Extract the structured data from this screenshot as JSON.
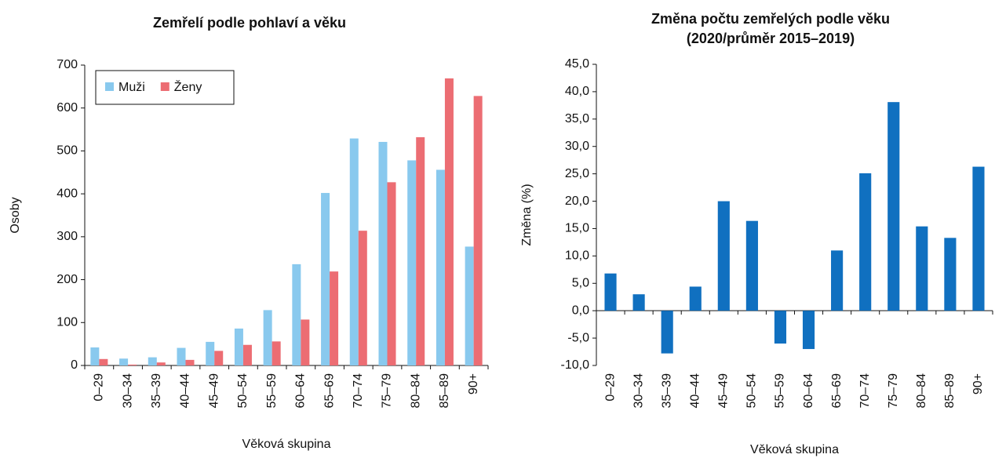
{
  "chart_data": [
    {
      "type": "bar",
      "title": "Zemřelí podle pohlaví a věku",
      "ylabel": "Osoby",
      "xlabel": "Věková skupina",
      "categories": [
        "0–29",
        "30–34",
        "35–39",
        "40–44",
        "45–49",
        "50–54",
        "55–59",
        "60–64",
        "65–69",
        "70–74",
        "75–79",
        "80–84",
        "85–89",
        "90+"
      ],
      "series": [
        {
          "name": "Muži",
          "color": "#89c9ee",
          "values": [
            42,
            16,
            19,
            41,
            55,
            86,
            129,
            236,
            402,
            529,
            521,
            478,
            456,
            277
          ]
        },
        {
          "name": "Ženy",
          "color": "#ec6d73",
          "values": [
            15,
            2,
            7,
            13,
            34,
            48,
            56,
            107,
            219,
            314,
            427,
            532,
            669,
            628
          ]
        }
      ],
      "ylim": [
        0,
        700
      ],
      "yticks": [
        0,
        100,
        200,
        300,
        400,
        500,
        600,
        700
      ],
      "legend": "upper-left"
    },
    {
      "type": "bar",
      "title": "Změna počtu zemřelých podle věku",
      "subtitle": "(2020/průměr 2015–2019)",
      "ylabel": "Změna (%)",
      "xlabel": "Věková skupina",
      "categories": [
        "0–29",
        "30–34",
        "35–39",
        "40–44",
        "45–49",
        "50–54",
        "55–59",
        "60–64",
        "65–69",
        "70–74",
        "75–79",
        "80–84",
        "85–89",
        "90+"
      ],
      "values": [
        6.8,
        3.0,
        -7.8,
        4.4,
        20.0,
        16.4,
        -6.0,
        -7.0,
        11.0,
        25.1,
        38.1,
        15.4,
        13.3,
        26.3
      ],
      "color": "#1070c0",
      "ylim": [
        -10,
        45
      ],
      "yticks": [
        {
          "value": -10,
          "label": "-10,0"
        },
        {
          "value": -5,
          "label": "-5,0"
        },
        {
          "value": 0,
          "label": "0,0"
        },
        {
          "value": 5,
          "label": "5,0"
        },
        {
          "value": 10,
          "label": "10,0"
        },
        {
          "value": 15,
          "label": "15,0"
        },
        {
          "value": 20,
          "label": "20,0"
        },
        {
          "value": 25,
          "label": "25,0"
        },
        {
          "value": 30,
          "label": "30,0"
        },
        {
          "value": 35,
          "label": "35,0"
        },
        {
          "value": 40,
          "label": "40,0"
        },
        {
          "value": 45,
          "label": "45,0"
        }
      ]
    }
  ]
}
